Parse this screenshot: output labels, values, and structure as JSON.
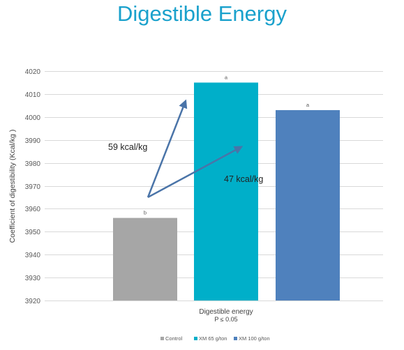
{
  "chart_data": {
    "type": "bar",
    "title": "Digestible Energy",
    "ylabel": "Coefficient of digestibility (Kcal/kg )",
    "xlabel": "Digestible energy",
    "x_sublabel": "P ≤ 0.05",
    "ylim": [
      3920,
      4020
    ],
    "yticks": [
      3920,
      3930,
      3940,
      3950,
      3960,
      3970,
      3980,
      3990,
      4000,
      4010,
      4020
    ],
    "grid": true,
    "legend_position": "bottom",
    "series": [
      {
        "name": "Control",
        "value": 3956,
        "letter": "b",
        "color": "#a6a6a6"
      },
      {
        "name": "XM 65 g/ton",
        "value": 4015,
        "letter": "a",
        "color": "#00afc9"
      },
      {
        "name": "XM 100 g/ton",
        "value": 4003,
        "letter": "a",
        "color": "#4f81bd"
      }
    ],
    "annotations": [
      {
        "text": "59 kcal/kg",
        "from": {
          "series": 0,
          "y": 3965
        },
        "to": {
          "series": 1,
          "y": 4007
        }
      },
      {
        "text": "47 kcal/kg",
        "from": {
          "series": 0,
          "y": 3965
        },
        "to": {
          "series": 2,
          "y": 3987
        }
      }
    ],
    "arrow_color": "#4a74a8"
  }
}
